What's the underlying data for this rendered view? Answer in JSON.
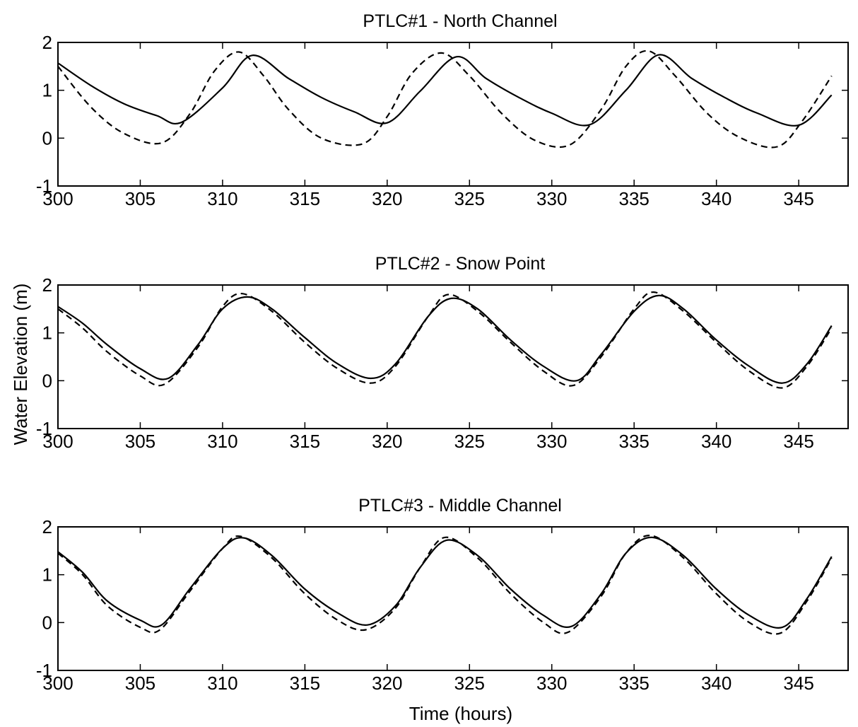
{
  "figure": {
    "ylabel": "Water Elevation (m)",
    "xlabel": "Time (hours)"
  },
  "chart_data": [
    {
      "type": "line",
      "title": "PTLC#1 - North Channel",
      "xlim": [
        300,
        348
      ],
      "ylim": [
        -1,
        2
      ],
      "xticks": [
        "300",
        "305",
        "310",
        "315",
        "320",
        "325",
        "330",
        "335",
        "340",
        "345"
      ],
      "yticks": [
        "-1",
        "0",
        "1",
        "2"
      ],
      "grid": false,
      "series": [
        {
          "style": "solid",
          "x": [
            300,
            302,
            304,
            306,
            307.5,
            310,
            311.8,
            314,
            316,
            318,
            320,
            322,
            324.2,
            326,
            328,
            330,
            332.3,
            334.5,
            336.5,
            338.5,
            340.5,
            342.5,
            345,
            347
          ],
          "values": [
            1.57,
            1.1,
            0.72,
            0.47,
            0.33,
            1.05,
            1.73,
            1.25,
            0.85,
            0.55,
            0.32,
            0.98,
            1.7,
            1.25,
            0.85,
            0.52,
            0.28,
            1.0,
            1.74,
            1.25,
            0.85,
            0.52,
            0.27,
            0.9
          ]
        },
        {
          "style": "dashed",
          "x": [
            300,
            302,
            304,
            306.3,
            308,
            309.5,
            311,
            312.5,
            314,
            316,
            318.5,
            320,
            321.5,
            323.3,
            325,
            327,
            329,
            331.1,
            333,
            334.5,
            335.9,
            337.5,
            339.5,
            341.5,
            343.7,
            345.2,
            347
          ],
          "values": [
            1.5,
            0.65,
            0.1,
            -0.1,
            0.5,
            1.4,
            1.8,
            1.3,
            0.6,
            0.0,
            -0.12,
            0.45,
            1.35,
            1.78,
            1.3,
            0.5,
            -0.05,
            -0.14,
            0.6,
            1.5,
            1.82,
            1.3,
            0.5,
            0.0,
            -0.18,
            0.35,
            1.3
          ]
        }
      ]
    },
    {
      "type": "line",
      "title": "PTLC#2 - Snow Point",
      "xlim": [
        300,
        348
      ],
      "ylim": [
        -1,
        2
      ],
      "xticks": [
        "300",
        "305",
        "310",
        "315",
        "320",
        "325",
        "330",
        "335",
        "340",
        "345"
      ],
      "yticks": [
        "-1",
        "0",
        "1",
        "2"
      ],
      "grid": false,
      "series": [
        {
          "style": "solid",
          "x": [
            300,
            301.5,
            303,
            305,
            306.7,
            308.5,
            310,
            311.5,
            313,
            315,
            317,
            319,
            320.5,
            322.5,
            323.9,
            325.5,
            327.5,
            329.5,
            331.5,
            333,
            335,
            336.5,
            338,
            340,
            342,
            344,
            345.5,
            347
          ],
          "values": [
            1.55,
            1.2,
            0.75,
            0.25,
            0.05,
            0.75,
            1.5,
            1.75,
            1.5,
            0.9,
            0.35,
            0.05,
            0.35,
            1.35,
            1.72,
            1.5,
            0.85,
            0.3,
            0.0,
            0.55,
            1.45,
            1.78,
            1.5,
            0.85,
            0.3,
            -0.05,
            0.35,
            1.15
          ]
        },
        {
          "style": "dashed",
          "x": [
            300,
            301.5,
            303,
            305,
            306.5,
            308.5,
            310,
            311.2,
            313,
            315,
            317,
            319,
            320.5,
            322.5,
            323.7,
            325.5,
            327.5,
            329.5,
            331.3,
            333,
            335,
            336.2,
            338,
            340,
            342,
            344,
            345.5,
            347
          ],
          "values": [
            1.5,
            1.1,
            0.6,
            0.1,
            -0.07,
            0.7,
            1.55,
            1.82,
            1.45,
            0.8,
            0.25,
            -0.05,
            0.3,
            1.35,
            1.8,
            1.45,
            0.8,
            0.2,
            -0.1,
            0.5,
            1.5,
            1.85,
            1.45,
            0.8,
            0.2,
            -0.15,
            0.3,
            1.1
          ]
        }
      ]
    },
    {
      "type": "line",
      "title": "PTLC#3 - Middle Channel",
      "xlim": [
        300,
        348
      ],
      "ylim": [
        -1,
        2
      ],
      "xticks": [
        "300",
        "305",
        "310",
        "315",
        "320",
        "325",
        "330",
        "335",
        "340",
        "345"
      ],
      "yticks": [
        "-1",
        "0",
        "1",
        "2"
      ],
      "grid": false,
      "series": [
        {
          "style": "solid",
          "x": [
            300,
            301.5,
            303,
            305,
            306.3,
            308,
            310,
            311.3,
            313,
            315,
            317,
            318.8,
            320.5,
            322,
            323.6,
            325.5,
            327.5,
            329.5,
            331.2,
            333,
            334.5,
            336.1,
            338,
            340,
            342,
            344,
            345.5,
            347
          ],
          "values": [
            1.48,
            1.05,
            0.45,
            0.05,
            -0.05,
            0.7,
            1.55,
            1.77,
            1.4,
            0.7,
            0.2,
            -0.05,
            0.35,
            1.15,
            1.72,
            1.4,
            0.7,
            0.15,
            -0.08,
            0.6,
            1.45,
            1.78,
            1.4,
            0.7,
            0.15,
            -0.1,
            0.5,
            1.38
          ]
        },
        {
          "style": "dashed",
          "x": [
            300,
            301.5,
            303,
            305,
            306.2,
            308,
            310,
            311.1,
            313,
            315,
            317,
            318.7,
            320.5,
            322,
            323.5,
            325.5,
            327.5,
            329.5,
            331,
            333,
            334.5,
            336,
            338,
            340,
            342,
            343.9,
            345.5,
            347
          ],
          "values": [
            1.45,
            1.0,
            0.35,
            -0.1,
            -0.15,
            0.65,
            1.55,
            1.8,
            1.35,
            0.6,
            0.05,
            -0.15,
            0.3,
            1.15,
            1.78,
            1.35,
            0.6,
            0.0,
            -0.2,
            0.55,
            1.45,
            1.82,
            1.35,
            0.6,
            0.0,
            -0.22,
            0.45,
            1.35
          ]
        }
      ]
    }
  ]
}
